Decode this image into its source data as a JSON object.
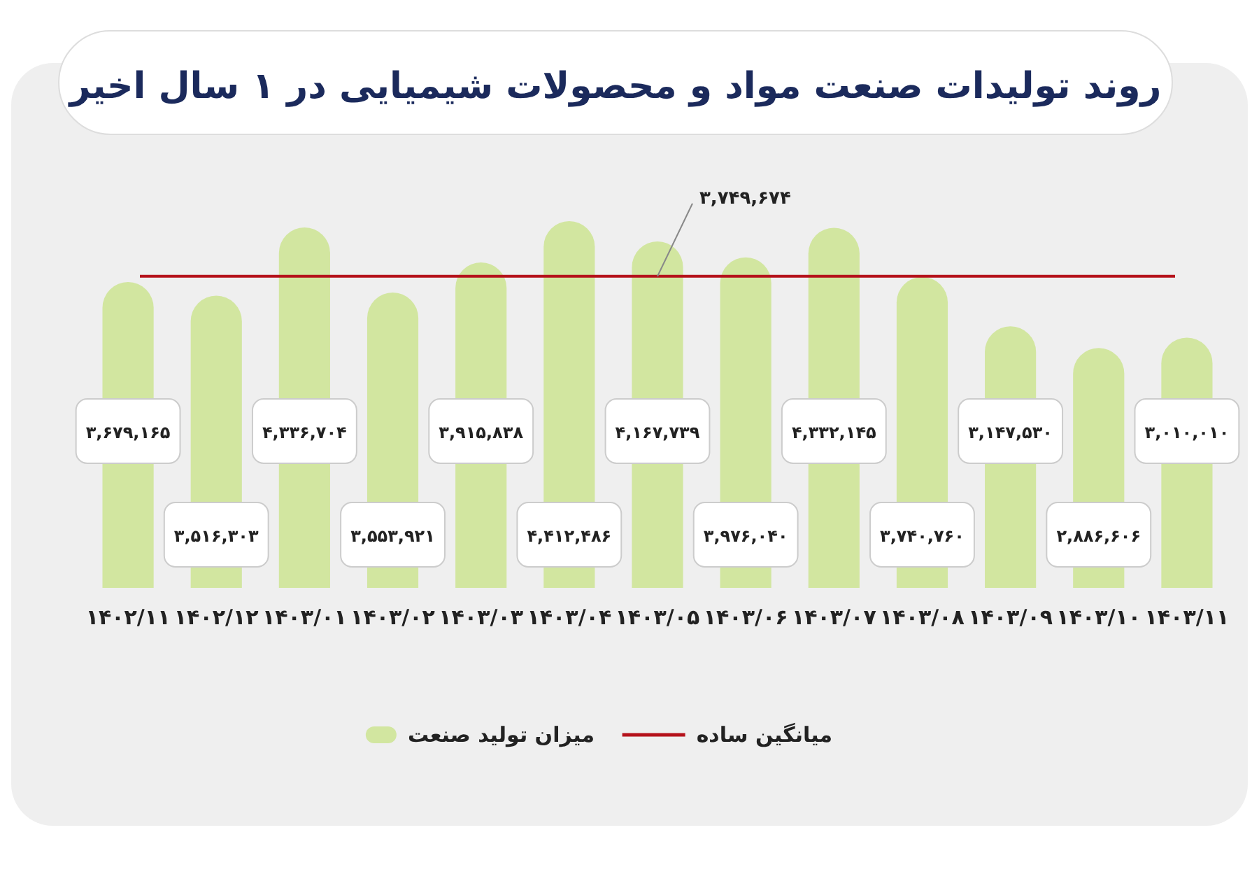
{
  "chart_data": {
    "type": "bar",
    "title": "روند تولیدات صنعت مواد و محصولات شیمیایی در ۱ سال اخیر",
    "categories": [
      "۱۴۰۲/۱۱",
      "۱۴۰۲/۱۲",
      "۱۴۰۳/۰۱",
      "۱۴۰۳/۰۲",
      "۱۴۰۳/۰۳",
      "۱۴۰۳/۰۴",
      "۱۴۰۳/۰۵",
      "۱۴۰۳/۰۶",
      "۱۴۰۳/۰۷",
      "۱۴۰۳/۰۸",
      "۱۴۰۳/۰۹",
      "۱۴۰۳/۱۰",
      "۱۴۰۳/۱۱"
    ],
    "series": [
      {
        "name": "میزان تولید صنعت",
        "color": "#d2e6a0",
        "values": [
          3679165,
          3516303,
          4336704,
          3553921,
          3915838,
          4412486,
          4167739,
          3976040,
          4332145,
          3740760,
          3147530,
          2886606,
          3010010
        ],
        "value_labels": [
          "۳,۶۷۹,۱۶۵",
          "۳,۵۱۶,۳۰۳",
          "۴,۳۳۶,۷۰۴",
          "۳,۵۵۳,۹۲۱",
          "۳,۹۱۵,۸۳۸",
          "۴,۴۱۲,۴۸۶",
          "۴,۱۶۷,۷۳۹",
          "۳,۹۷۶,۰۴۰",
          "۴,۳۳۲,۱۴۵",
          "۳,۷۴۰,۷۶۰",
          "۳,۱۴۷,۵۳۰",
          "۲,۸۸۶,۶۰۶",
          "۳,۰۱۰,۰۱۰"
        ]
      }
    ],
    "ref_lines": [
      {
        "axis": "y",
        "value": 3749674,
        "label": "میانگین ساده",
        "color": "#b5121b"
      }
    ],
    "annotations": [
      {
        "text": "۳,۷۴۹,۶۷۴",
        "x": "۱۴۰۳/۰۵",
        "y": 3749674
      }
    ],
    "legend": "bottom"
  }
}
